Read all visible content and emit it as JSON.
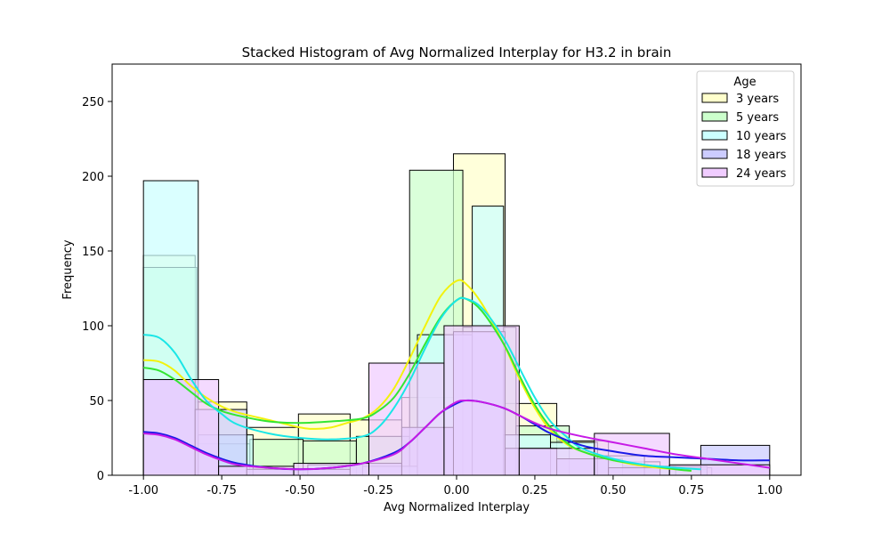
{
  "chart_data": {
    "type": "histogram",
    "title": "Stacked Histogram of Avg Normalized  Interplay for H3.2 in brain",
    "xlabel": "Avg Normalized Interplay",
    "ylabel": "Frequency",
    "xlim": [
      -1.1,
      1.1
    ],
    "ylim": [
      0,
      275
    ],
    "x_ticks": [
      "-1.00",
      "-0.75",
      "-0.50",
      "-0.25",
      "0.00",
      "0.25",
      "0.50",
      "0.75",
      "1.00"
    ],
    "x_tick_values": [
      -1.0,
      -0.75,
      -0.5,
      -0.25,
      0.0,
      0.25,
      0.5,
      0.75,
      1.0
    ],
    "y_ticks": [
      "0",
      "50",
      "100",
      "150",
      "200",
      "250"
    ],
    "y_tick_values": [
      0,
      50,
      100,
      150,
      200,
      250
    ],
    "grid": false,
    "legend": {
      "title": "Age",
      "position": "upper-right"
    },
    "series": [
      {
        "name": "3 years",
        "fill": "#ffffcc",
        "line": "#f2f20d",
        "bins": [
          [
            -1.0,
            -0.835,
            147
          ],
          [
            -0.835,
            -0.67,
            49
          ],
          [
            -0.67,
            -0.505,
            32
          ],
          [
            -0.505,
            -0.34,
            41
          ],
          [
            -0.34,
            -0.175,
            37
          ],
          [
            -0.175,
            -0.01,
            52
          ],
          [
            -0.01,
            0.155,
            215
          ],
          [
            0.155,
            0.32,
            48
          ],
          [
            0.32,
            0.485,
            23
          ],
          [
            0.485,
            0.65,
            9
          ],
          [
            0.65,
            0.815,
            5
          ]
        ],
        "kde": [
          [
            -1.0,
            77
          ],
          [
            -0.95,
            76
          ],
          [
            -0.9,
            70
          ],
          [
            -0.85,
            60
          ],
          [
            -0.8,
            52
          ],
          [
            -0.75,
            46
          ],
          [
            -0.7,
            42
          ],
          [
            -0.6,
            37
          ],
          [
            -0.5,
            32
          ],
          [
            -0.45,
            31
          ],
          [
            -0.4,
            32
          ],
          [
            -0.35,
            35
          ],
          [
            -0.3,
            38
          ],
          [
            -0.25,
            45
          ],
          [
            -0.2,
            58
          ],
          [
            -0.15,
            78
          ],
          [
            -0.1,
            100
          ],
          [
            -0.05,
            120
          ],
          [
            0.0,
            130
          ],
          [
            0.03,
            128
          ],
          [
            0.08,
            115
          ],
          [
            0.15,
            88
          ],
          [
            0.2,
            65
          ],
          [
            0.25,
            45
          ],
          [
            0.3,
            30
          ],
          [
            0.35,
            21
          ],
          [
            0.4,
            16
          ],
          [
            0.5,
            10
          ],
          [
            0.6,
            6
          ],
          [
            0.7,
            4
          ],
          [
            0.75,
            3
          ]
        ]
      },
      {
        "name": "5 years",
        "fill": "#ccffcc",
        "line": "#33e633",
        "bins": [
          [
            -1.0,
            -0.83,
            139
          ],
          [
            -0.83,
            -0.66,
            21
          ],
          [
            -0.66,
            -0.49,
            24
          ],
          [
            -0.49,
            -0.32,
            23
          ],
          [
            -0.32,
            -0.15,
            26
          ],
          [
            -0.15,
            0.02,
            204
          ],
          [
            0.02,
            0.19,
            99
          ],
          [
            0.19,
            0.36,
            33
          ],
          [
            0.36,
            0.53,
            11
          ],
          [
            0.53,
            0.7,
            6
          ],
          [
            0.7,
            0.8,
            4
          ]
        ],
        "kde": [
          [
            -1.0,
            72
          ],
          [
            -0.95,
            70
          ],
          [
            -0.9,
            64
          ],
          [
            -0.85,
            56
          ],
          [
            -0.8,
            48
          ],
          [
            -0.75,
            43
          ],
          [
            -0.7,
            40
          ],
          [
            -0.6,
            36
          ],
          [
            -0.5,
            35
          ],
          [
            -0.4,
            36
          ],
          [
            -0.3,
            38
          ],
          [
            -0.25,
            43
          ],
          [
            -0.2,
            52
          ],
          [
            -0.15,
            68
          ],
          [
            -0.1,
            88
          ],
          [
            -0.05,
            106
          ],
          [
            0.0,
            117
          ],
          [
            0.03,
            118
          ],
          [
            0.08,
            110
          ],
          [
            0.15,
            88
          ],
          [
            0.2,
            67
          ],
          [
            0.25,
            47
          ],
          [
            0.3,
            32
          ],
          [
            0.35,
            22
          ],
          [
            0.4,
            16
          ],
          [
            0.5,
            10
          ],
          [
            0.6,
            7
          ],
          [
            0.7,
            4
          ],
          [
            0.75,
            3
          ]
        ]
      },
      {
        "name": "10 years",
        "fill": "#ccffff",
        "line": "#1ae6e6",
        "bins": [
          [
            -1.0,
            -0.825,
            197
          ],
          [
            -0.825,
            -0.65,
            27
          ],
          [
            -0.65,
            -0.475,
            4
          ],
          [
            -0.475,
            -0.3,
            7
          ],
          [
            -0.3,
            -0.125,
            6
          ],
          [
            -0.125,
            0.05,
            94
          ],
          [
            0.05,
            0.15,
            180
          ],
          [
            0.15,
            0.3,
            27
          ],
          [
            0.3,
            0.45,
            22
          ],
          [
            0.45,
            0.6,
            13
          ],
          [
            0.6,
            0.8,
            6
          ]
        ],
        "kde": [
          [
            -1.0,
            94
          ],
          [
            -0.95,
            92
          ],
          [
            -0.9,
            82
          ],
          [
            -0.85,
            65
          ],
          [
            -0.8,
            50
          ],
          [
            -0.75,
            41
          ],
          [
            -0.7,
            34
          ],
          [
            -0.6,
            28
          ],
          [
            -0.5,
            25
          ],
          [
            -0.4,
            24
          ],
          [
            -0.3,
            26
          ],
          [
            -0.25,
            32
          ],
          [
            -0.2,
            45
          ],
          [
            -0.15,
            63
          ],
          [
            -0.1,
            85
          ],
          [
            -0.05,
            105
          ],
          [
            0.0,
            117
          ],
          [
            0.03,
            118
          ],
          [
            0.08,
            112
          ],
          [
            0.15,
            92
          ],
          [
            0.2,
            72
          ],
          [
            0.25,
            52
          ],
          [
            0.3,
            36
          ],
          [
            0.35,
            26
          ],
          [
            0.4,
            18
          ],
          [
            0.5,
            11
          ],
          [
            0.6,
            7
          ],
          [
            0.7,
            5
          ],
          [
            0.78,
            4
          ]
        ]
      },
      {
        "name": "18 years",
        "fill": "#ccccff",
        "line": "#1a1ae6",
        "bins": [
          [
            -1.0,
            -0.835,
            64
          ],
          [
            -0.835,
            -0.67,
            44
          ],
          [
            -0.67,
            -0.505,
            4
          ],
          [
            -0.505,
            -0.34,
            4
          ],
          [
            -0.34,
            -0.175,
            8
          ],
          [
            -0.175,
            -0.01,
            32
          ],
          [
            -0.01,
            0.155,
            96
          ],
          [
            0.155,
            0.32,
            18
          ],
          [
            0.32,
            0.485,
            11
          ],
          [
            0.485,
            0.65,
            5
          ],
          [
            0.78,
            1.0,
            20
          ]
        ],
        "kde": [
          [
            -1.0,
            29
          ],
          [
            -0.95,
            28
          ],
          [
            -0.9,
            25
          ],
          [
            -0.85,
            20
          ],
          [
            -0.8,
            15
          ],
          [
            -0.75,
            11
          ],
          [
            -0.7,
            8
          ],
          [
            -0.6,
            5
          ],
          [
            -0.5,
            4
          ],
          [
            -0.4,
            5
          ],
          [
            -0.3,
            8
          ],
          [
            -0.2,
            15
          ],
          [
            -0.15,
            22
          ],
          [
            -0.1,
            32
          ],
          [
            -0.05,
            42
          ],
          [
            0.0,
            48
          ],
          [
            0.03,
            50
          ],
          [
            0.08,
            49
          ],
          [
            0.15,
            45
          ],
          [
            0.2,
            40
          ],
          [
            0.25,
            34
          ],
          [
            0.3,
            28
          ],
          [
            0.4,
            20
          ],
          [
            0.5,
            16
          ],
          [
            0.6,
            13
          ],
          [
            0.7,
            12
          ],
          [
            0.8,
            11
          ],
          [
            0.9,
            10
          ],
          [
            1.0,
            10
          ]
        ]
      },
      {
        "name": "24 years",
        "fill": "#f0ccff",
        "line": "#c61ae6",
        "bins": [
          [
            -1.0,
            -0.76,
            64
          ],
          [
            -0.76,
            -0.52,
            6
          ],
          [
            -0.52,
            -0.28,
            8
          ],
          [
            -0.28,
            -0.04,
            75
          ],
          [
            -0.04,
            0.2,
            100
          ],
          [
            0.2,
            0.44,
            18
          ],
          [
            0.44,
            0.68,
            28
          ],
          [
            0.68,
            1.0,
            7
          ]
        ],
        "kde": [
          [
            -1.0,
            28
          ],
          [
            -0.95,
            27
          ],
          [
            -0.9,
            24
          ],
          [
            -0.85,
            19
          ],
          [
            -0.8,
            14
          ],
          [
            -0.75,
            10
          ],
          [
            -0.7,
            7
          ],
          [
            -0.6,
            5
          ],
          [
            -0.5,
            4
          ],
          [
            -0.4,
            5
          ],
          [
            -0.3,
            8
          ],
          [
            -0.2,
            14
          ],
          [
            -0.15,
            22
          ],
          [
            -0.1,
            32
          ],
          [
            -0.05,
            42
          ],
          [
            0.0,
            49
          ],
          [
            0.03,
            50
          ],
          [
            0.08,
            49
          ],
          [
            0.15,
            45
          ],
          [
            0.2,
            40
          ],
          [
            0.25,
            35
          ],
          [
            0.3,
            31
          ],
          [
            0.4,
            26
          ],
          [
            0.5,
            22
          ],
          [
            0.6,
            18
          ],
          [
            0.7,
            14
          ],
          [
            0.8,
            11
          ],
          [
            0.9,
            8
          ],
          [
            1.0,
            5
          ]
        ]
      }
    ]
  }
}
